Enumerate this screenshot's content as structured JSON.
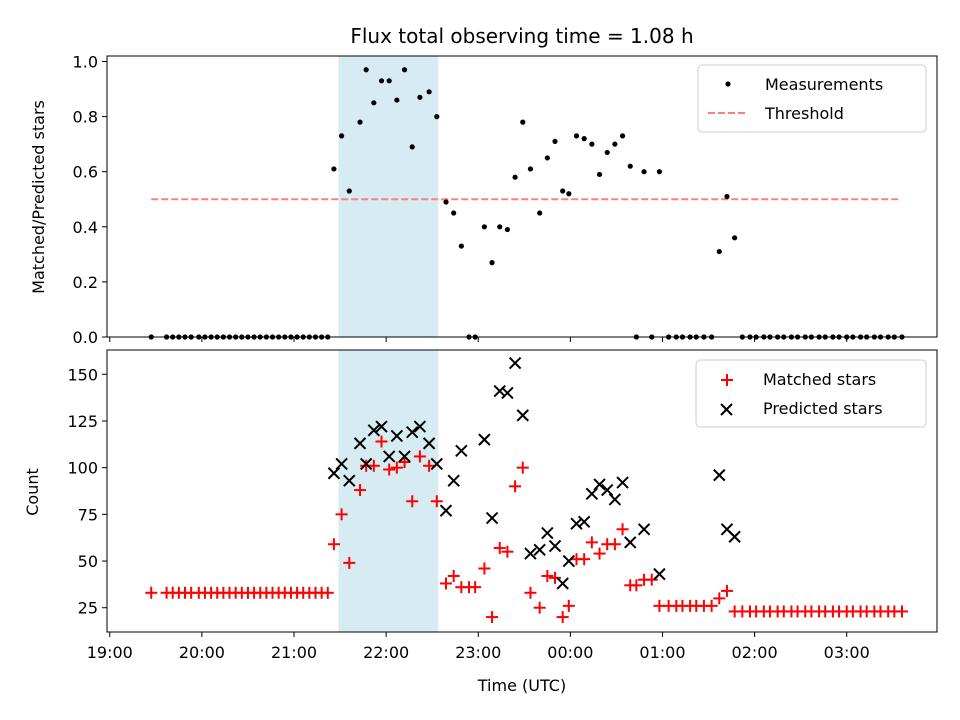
{
  "chart_data": [
    {
      "type": "scatter",
      "title": "Flux total observing time = 1.08 h",
      "xlabel": "",
      "ylabel": "Matched/Predicted stars",
      "ylim": [
        0,
        1.02
      ],
      "xlim": [
        "19:00",
        "04:00"
      ],
      "x_tick_labels": [],
      "y_ticks": [
        "0.0",
        "0.2",
        "0.4",
        "0.6",
        "0.8",
        "1.0"
      ],
      "legend": {
        "position": "top-right",
        "entries": [
          "Measurements",
          "Threshold"
        ]
      },
      "shaded_span": {
        "start": "21:29",
        "end": "22:34",
        "color": "#add8e6"
      },
      "threshold": {
        "name": "Threshold",
        "y": 0.5,
        "x_start": "19:27",
        "x_end": "03:35",
        "color": "#ff7f7f"
      },
      "series": [
        {
          "name": "Measurements",
          "color": "#000000",
          "points": [
            [
              "19:27",
              0
            ],
            [
              "19:37",
              0
            ],
            [
              "19:41",
              0
            ],
            [
              "19:45",
              0
            ],
            [
              "19:49",
              0
            ],
            [
              "19:53",
              0
            ],
            [
              "19:58",
              0
            ],
            [
              "20:02",
              0
            ],
            [
              "20:06",
              0
            ],
            [
              "20:10",
              0
            ],
            [
              "20:14",
              0
            ],
            [
              "20:18",
              0
            ],
            [
              "20:22",
              0
            ],
            [
              "20:26",
              0
            ],
            [
              "20:30",
              0
            ],
            [
              "20:34",
              0
            ],
            [
              "20:38",
              0
            ],
            [
              "20:42",
              0
            ],
            [
              "20:46",
              0
            ],
            [
              "20:50",
              0
            ],
            [
              "20:54",
              0
            ],
            [
              "20:58",
              0
            ],
            [
              "21:02",
              0
            ],
            [
              "21:06",
              0
            ],
            [
              "21:10",
              0
            ],
            [
              "21:14",
              0
            ],
            [
              "21:18",
              0
            ],
            [
              "21:22",
              0
            ],
            [
              "21:26",
              0.61
            ],
            [
              "21:31",
              0.73
            ],
            [
              "21:36",
              0.53
            ],
            [
              "21:43",
              0.78
            ],
            [
              "21:47",
              0.97
            ],
            [
              "21:52",
              0.85
            ],
            [
              "21:57",
              0.93
            ],
            [
              "22:02",
              0.93
            ],
            [
              "22:07",
              0.86
            ],
            [
              "22:12",
              0.97
            ],
            [
              "22:17",
              0.69
            ],
            [
              "22:22",
              0.87
            ],
            [
              "22:28",
              0.89
            ],
            [
              "22:33",
              0.8
            ],
            [
              "22:39",
              0.49
            ],
            [
              "22:44",
              0.45
            ],
            [
              "22:49",
              0.33
            ],
            [
              "22:54",
              0
            ],
            [
              "22:58",
              0
            ],
            [
              "23:04",
              0.4
            ],
            [
              "23:09",
              0.27
            ],
            [
              "23:14",
              0.4
            ],
            [
              "23:19",
              0.39
            ],
            [
              "23:24",
              0.58
            ],
            [
              "23:29",
              0.78
            ],
            [
              "23:34",
              0.61
            ],
            [
              "23:40",
              0.45
            ],
            [
              "23:45",
              0.65
            ],
            [
              "23:50",
              0.71
            ],
            [
              "23:55",
              0.53
            ],
            [
              "23:59",
              0.52
            ],
            [
              "00:04",
              0.73
            ],
            [
              "00:09",
              0.72
            ],
            [
              "00:14",
              0.7
            ],
            [
              "00:19",
              0.59
            ],
            [
              "00:24",
              0.67
            ],
            [
              "00:29",
              0.7
            ],
            [
              "00:34",
              0.73
            ],
            [
              "00:39",
              0.62
            ],
            [
              "00:43",
              0
            ],
            [
              "00:48",
              0.6
            ],
            [
              "00:53",
              0
            ],
            [
              "00:58",
              0.6
            ],
            [
              "01:04",
              0
            ],
            [
              "01:09",
              0
            ],
            [
              "01:13",
              0
            ],
            [
              "01:18",
              0
            ],
            [
              "01:22",
              0
            ],
            [
              "01:27",
              0
            ],
            [
              "01:32",
              0
            ],
            [
              "01:37",
              0.31
            ],
            [
              "01:42",
              0.51
            ],
            [
              "01:47",
              0.36
            ],
            [
              "01:52",
              0
            ],
            [
              "01:57",
              0
            ],
            [
              "02:01",
              0
            ],
            [
              "02:06",
              0
            ],
            [
              "02:10",
              0
            ],
            [
              "02:15",
              0
            ],
            [
              "02:19",
              0
            ],
            [
              "02:24",
              0
            ],
            [
              "02:28",
              0
            ],
            [
              "02:33",
              0
            ],
            [
              "02:37",
              0
            ],
            [
              "02:42",
              0
            ],
            [
              "02:46",
              0
            ],
            [
              "02:51",
              0
            ],
            [
              "02:55",
              0
            ],
            [
              "03:00",
              0
            ],
            [
              "03:04",
              0
            ],
            [
              "03:09",
              0
            ],
            [
              "03:13",
              0
            ],
            [
              "03:18",
              0
            ],
            [
              "03:22",
              0
            ],
            [
              "03:27",
              0
            ],
            [
              "03:31",
              0
            ],
            [
              "03:36",
              0
            ]
          ]
        }
      ]
    },
    {
      "type": "scatter",
      "title": "",
      "xlabel": "Time (UTC)",
      "ylabel": "Count",
      "ylim": [
        12,
        163
      ],
      "xlim": [
        "19:00",
        "04:00"
      ],
      "x_tick_labels": [
        "19:00",
        "20:00",
        "21:00",
        "22:00",
        "23:00",
        "00:00",
        "01:00",
        "02:00",
        "03:00"
      ],
      "y_ticks": [
        "25",
        "50",
        "75",
        "100",
        "125",
        "150"
      ],
      "legend": {
        "position": "top-right",
        "entries": [
          "Matched stars",
          "Predicted stars"
        ]
      },
      "shaded_span": {
        "start": "21:29",
        "end": "22:34",
        "color": "#add8e6"
      },
      "series": [
        {
          "name": "Matched stars",
          "marker": "+",
          "color": "#ff0000",
          "points": [
            [
              "19:27",
              33
            ],
            [
              "19:37",
              33
            ],
            [
              "19:41",
              33
            ],
            [
              "19:45",
              33
            ],
            [
              "19:49",
              33
            ],
            [
              "19:53",
              33
            ],
            [
              "19:58",
              33
            ],
            [
              "20:02",
              33
            ],
            [
              "20:06",
              33
            ],
            [
              "20:10",
              33
            ],
            [
              "20:14",
              33
            ],
            [
              "20:18",
              33
            ],
            [
              "20:22",
              33
            ],
            [
              "20:26",
              33
            ],
            [
              "20:30",
              33
            ],
            [
              "20:34",
              33
            ],
            [
              "20:38",
              33
            ],
            [
              "20:42",
              33
            ],
            [
              "20:46",
              33
            ],
            [
              "20:50",
              33
            ],
            [
              "20:54",
              33
            ],
            [
              "20:58",
              33
            ],
            [
              "21:02",
              33
            ],
            [
              "21:06",
              33
            ],
            [
              "21:10",
              33
            ],
            [
              "21:14",
              33
            ],
            [
              "21:18",
              33
            ],
            [
              "21:22",
              33
            ],
            [
              "21:26",
              59
            ],
            [
              "21:31",
              75
            ],
            [
              "21:36",
              49
            ],
            [
              "21:43",
              88
            ],
            [
              "21:47",
              101
            ],
            [
              "21:52",
              101
            ],
            [
              "21:57",
              114
            ],
            [
              "22:02",
              99
            ],
            [
              "22:07",
              100
            ],
            [
              "22:12",
              103
            ],
            [
              "22:17",
              82
            ],
            [
              "22:22",
              106
            ],
            [
              "22:28",
              101
            ],
            [
              "22:33",
              82
            ],
            [
              "22:39",
              38
            ],
            [
              "22:44",
              42
            ],
            [
              "22:49",
              36
            ],
            [
              "22:54",
              36
            ],
            [
              "22:58",
              36
            ],
            [
              "23:04",
              46
            ],
            [
              "23:09",
              20
            ],
            [
              "23:14",
              57
            ],
            [
              "23:19",
              55
            ],
            [
              "23:24",
              90
            ],
            [
              "23:29",
              100
            ],
            [
              "23:34",
              33
            ],
            [
              "23:40",
              25
            ],
            [
              "23:45",
              42
            ],
            [
              "23:50",
              41
            ],
            [
              "23:55",
              20
            ],
            [
              "23:59",
              26
            ],
            [
              "00:04",
              51
            ],
            [
              "00:09",
              51
            ],
            [
              "00:14",
              60
            ],
            [
              "00:19",
              54
            ],
            [
              "00:24",
              59
            ],
            [
              "00:29",
              59
            ],
            [
              "00:34",
              67
            ],
            [
              "00:39",
              37
            ],
            [
              "00:43",
              37
            ],
            [
              "00:48",
              40
            ],
            [
              "00:53",
              40
            ],
            [
              "00:58",
              26
            ],
            [
              "01:04",
              26
            ],
            [
              "01:09",
              26
            ],
            [
              "01:13",
              26
            ],
            [
              "01:18",
              26
            ],
            [
              "01:22",
              26
            ],
            [
              "01:27",
              26
            ],
            [
              "01:32",
              26
            ],
            [
              "01:37",
              30
            ],
            [
              "01:42",
              34
            ],
            [
              "01:47",
              23
            ],
            [
              "01:52",
              23
            ],
            [
              "01:57",
              23
            ],
            [
              "02:01",
              23
            ],
            [
              "02:06",
              23
            ],
            [
              "02:10",
              23
            ],
            [
              "02:15",
              23
            ],
            [
              "02:19",
              23
            ],
            [
              "02:24",
              23
            ],
            [
              "02:28",
              23
            ],
            [
              "02:33",
              23
            ],
            [
              "02:37",
              23
            ],
            [
              "02:42",
              23
            ],
            [
              "02:46",
              23
            ],
            [
              "02:51",
              23
            ],
            [
              "02:55",
              23
            ],
            [
              "03:00",
              23
            ],
            [
              "03:04",
              23
            ],
            [
              "03:09",
              23
            ],
            [
              "03:13",
              23
            ],
            [
              "03:18",
              23
            ],
            [
              "03:22",
              23
            ],
            [
              "03:27",
              23
            ],
            [
              "03:31",
              23
            ],
            [
              "03:36",
              23
            ]
          ]
        },
        {
          "name": "Predicted stars",
          "marker": "x",
          "color": "#000000",
          "points": [
            [
              "21:26",
              97
            ],
            [
              "21:31",
              102
            ],
            [
              "21:36",
              93
            ],
            [
              "21:43",
              113
            ],
            [
              "21:47",
              102
            ],
            [
              "21:52",
              120
            ],
            [
              "21:57",
              122
            ],
            [
              "22:02",
              106
            ],
            [
              "22:07",
              117
            ],
            [
              "22:12",
              106
            ],
            [
              "22:17",
              119
            ],
            [
              "22:22",
              122
            ],
            [
              "22:28",
              113
            ],
            [
              "22:33",
              102
            ],
            [
              "22:39",
              77
            ],
            [
              "22:44",
              93
            ],
            [
              "22:49",
              109
            ],
            [
              "23:04",
              115
            ],
            [
              "23:09",
              73
            ],
            [
              "23:14",
              141
            ],
            [
              "23:19",
              140
            ],
            [
              "23:24",
              156
            ],
            [
              "23:29",
              128
            ],
            [
              "23:34",
              54
            ],
            [
              "23:40",
              56
            ],
            [
              "23:45",
              65
            ],
            [
              "23:50",
              58
            ],
            [
              "23:55",
              38
            ],
            [
              "23:59",
              50
            ],
            [
              "00:04",
              70
            ],
            [
              "00:09",
              71
            ],
            [
              "00:14",
              86
            ],
            [
              "00:19",
              91
            ],
            [
              "00:24",
              88
            ],
            [
              "00:29",
              83
            ],
            [
              "00:34",
              92
            ],
            [
              "00:39",
              60
            ],
            [
              "00:48",
              67
            ],
            [
              "00:58",
              43
            ],
            [
              "01:37",
              96
            ],
            [
              "01:42",
              67
            ],
            [
              "01:47",
              63
            ]
          ]
        }
      ]
    }
  ]
}
